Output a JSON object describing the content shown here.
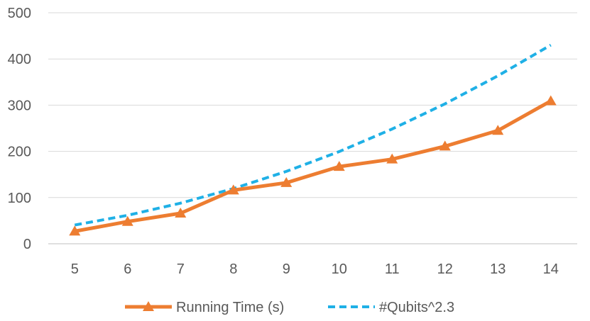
{
  "chart_data": {
    "type": "line",
    "categories": [
      "5",
      "6",
      "7",
      "8",
      "9",
      "10",
      "11",
      "12",
      "13",
      "14"
    ],
    "ylim": [
      0,
      500
    ],
    "yticks": [
      0,
      100,
      200,
      300,
      400,
      500
    ],
    "grid": true,
    "legend_position": "bottom",
    "series": [
      {
        "name": "Running Time (s)",
        "values": [
          27,
          48,
          66,
          116,
          132,
          167,
          183,
          211,
          245,
          309
        ],
        "color": "#ED7D31",
        "style": "solid",
        "marker": "triangle"
      },
      {
        "name": "#Qubits^2.3",
        "values": [
          40.5,
          61.6,
          87.9,
          119.4,
          156.6,
          199.5,
          248.3,
          302.9,
          363.5,
          430.1
        ],
        "color": "#1FB0E6",
        "style": "dashed",
        "marker": "none"
      }
    ]
  }
}
